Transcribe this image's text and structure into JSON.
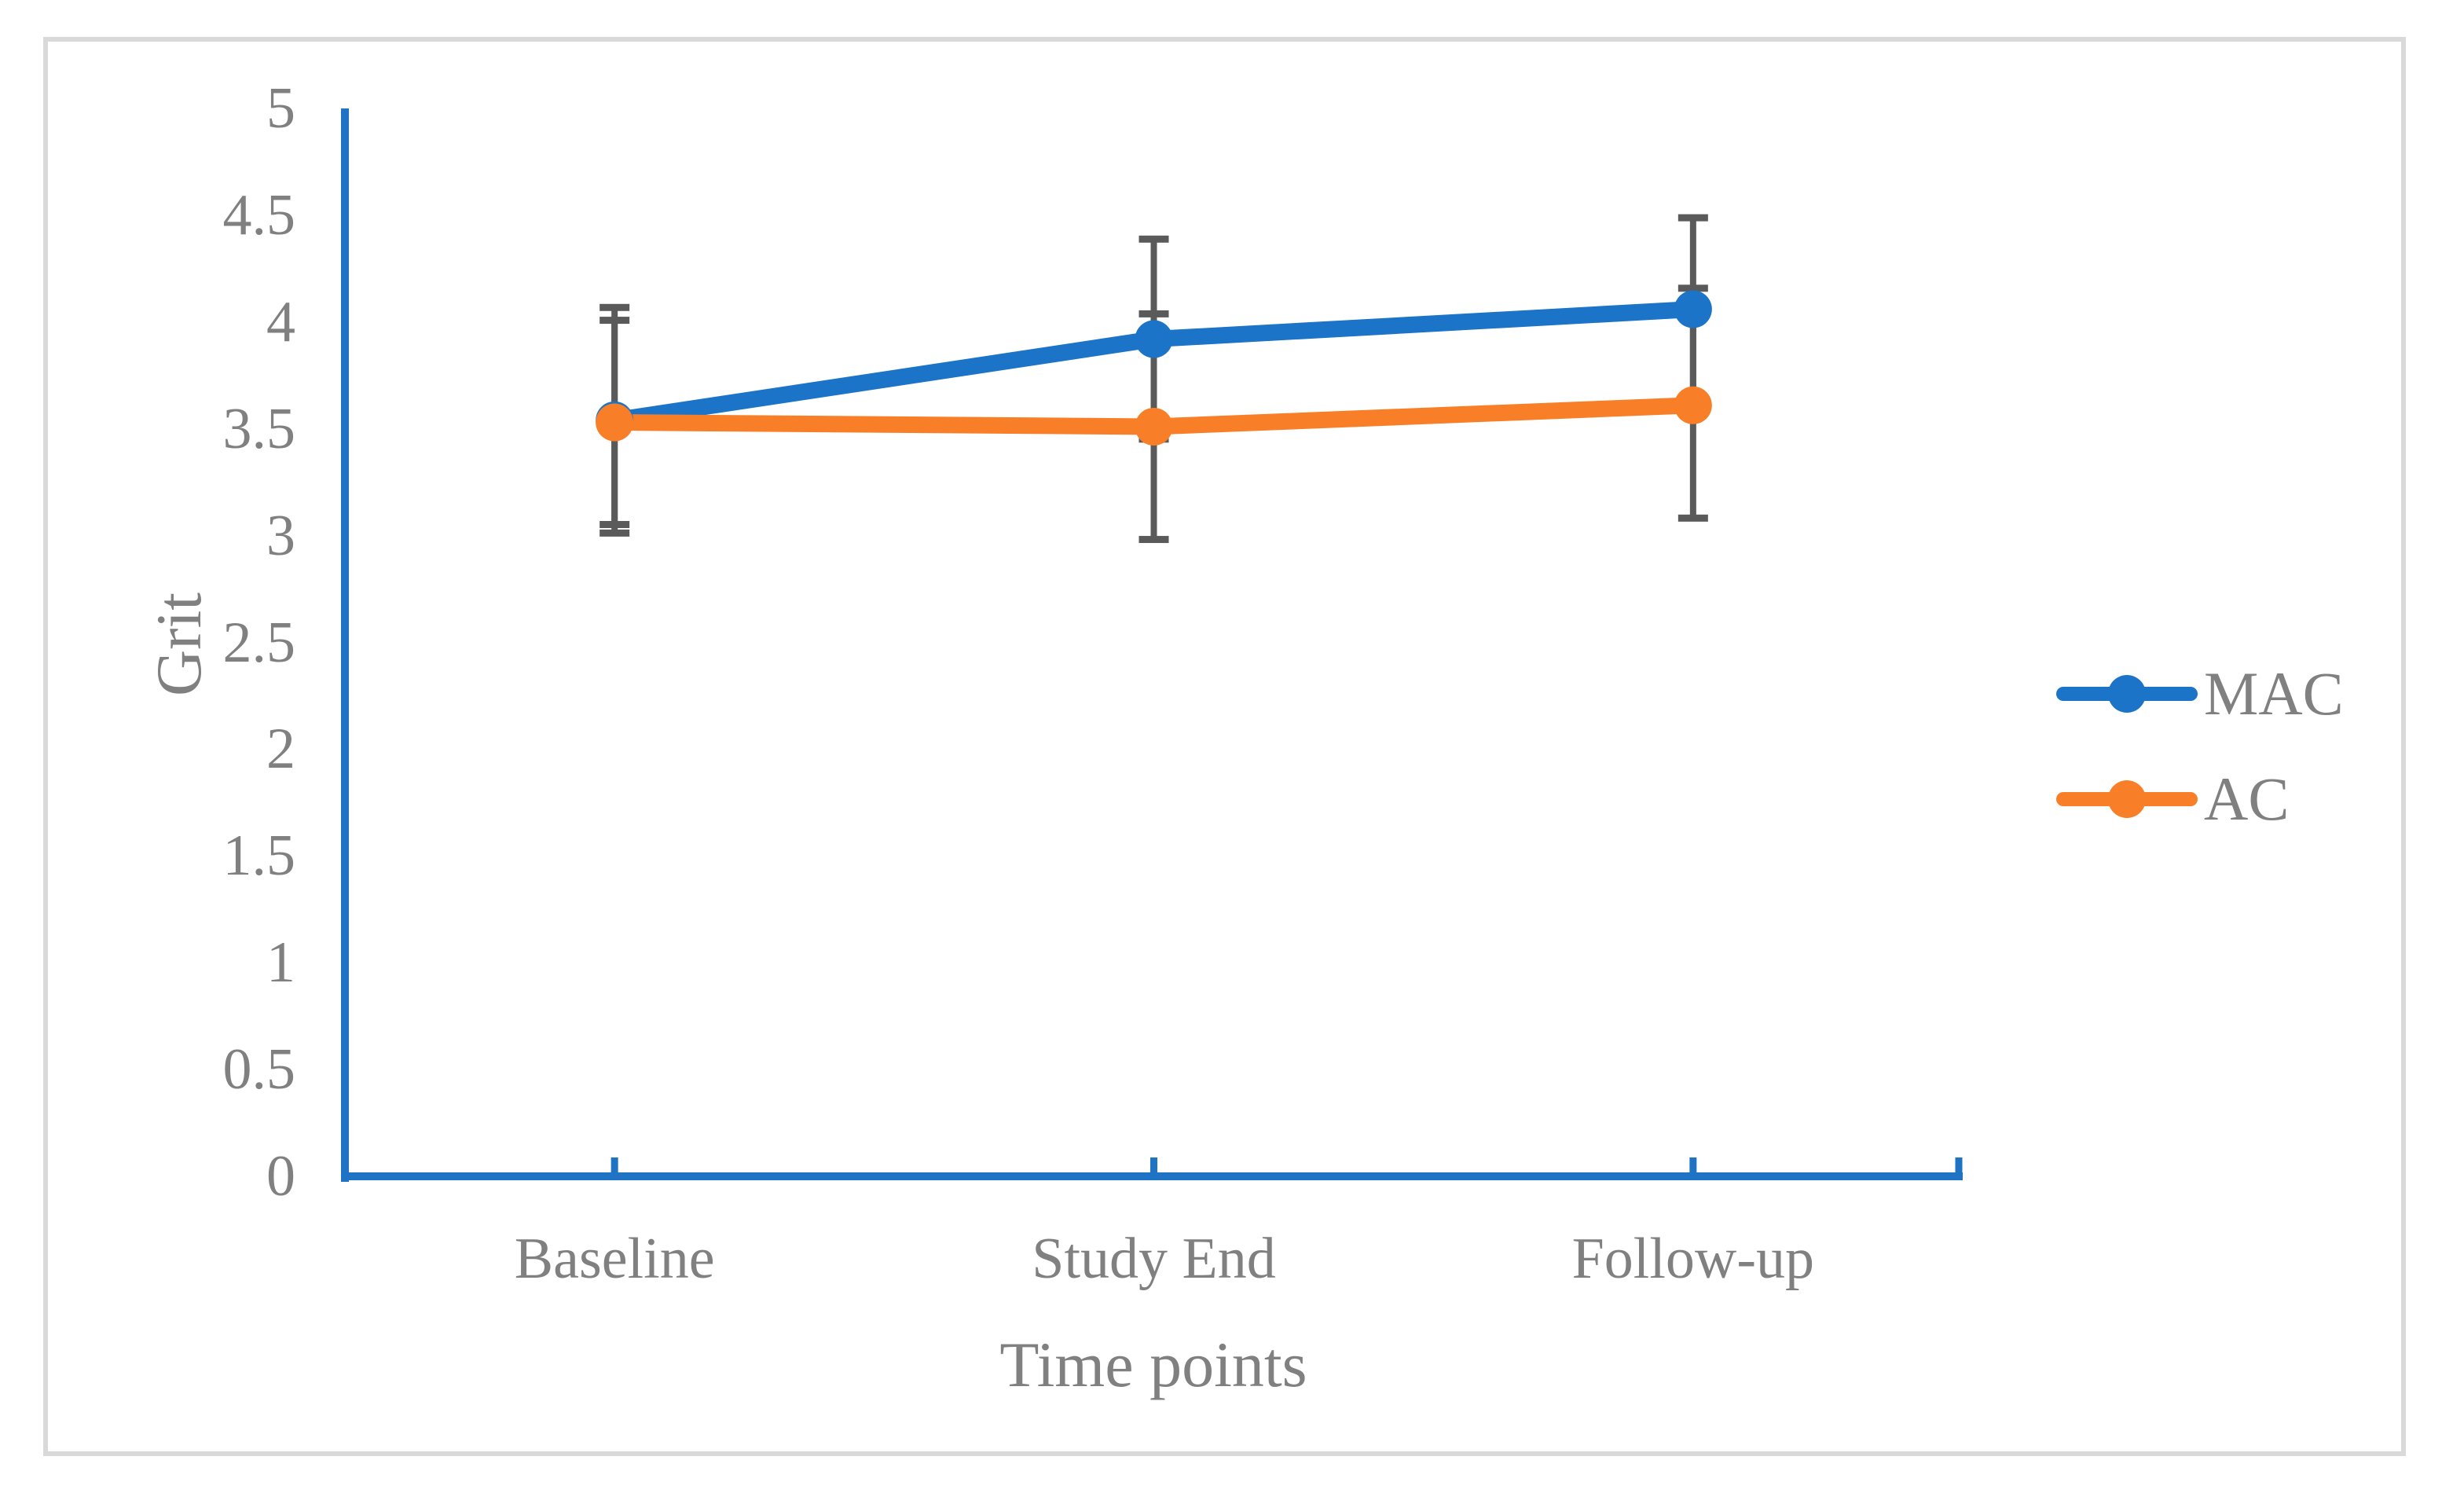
{
  "chart_data": {
    "type": "line",
    "categories": [
      "Baseline",
      "Study End",
      "Follow-up"
    ],
    "series": [
      {
        "name": "MAC",
        "color": "#1B74C7",
        "values": [
          3.54,
          3.92,
          4.06
        ],
        "error_up": [
          0.53,
          0.47,
          0.43
        ],
        "error_down": [
          0.53,
          0.47,
          0.43
        ]
      },
      {
        "name": "AC",
        "color": "#F97E28",
        "values": [
          3.53,
          3.51,
          3.61
        ],
        "error_up": [
          0.48,
          0.53,
          0.55
        ],
        "error_down": [
          0.48,
          0.53,
          0.53
        ]
      }
    ],
    "title": "",
    "xlabel": "Time points",
    "ylabel": "Grit",
    "ylim": [
      0,
      5
    ],
    "ytick_step": 0.5,
    "ytick_labels": [
      "0",
      "0.5",
      "1",
      "1.5",
      "2",
      "2.5",
      "3",
      "3.5",
      "4",
      "4.5",
      "5"
    ],
    "grid": false,
    "legend_position": "right",
    "marker": "circle",
    "colors": {
      "axis": "#1E73C4",
      "error_bar": "#5A5A5A",
      "text": "#808080",
      "frame_border": "#D9D9D9",
      "background": "#FFFFFF"
    }
  }
}
